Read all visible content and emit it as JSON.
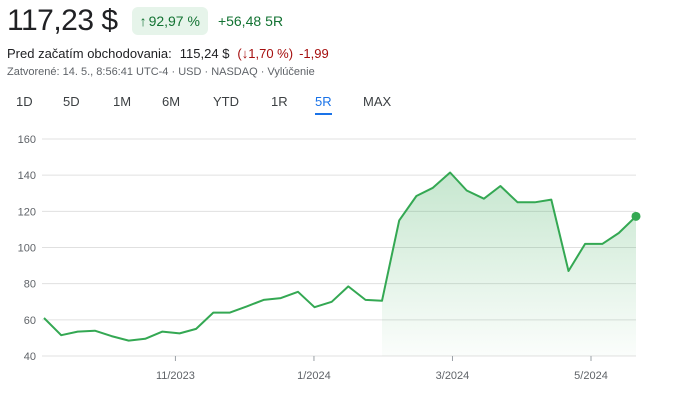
{
  "quote": {
    "price": "117,23 $",
    "pct_change": "92,97 %",
    "abs_change": "+56,48",
    "period": "5R"
  },
  "premarket": {
    "label": "Pred začatím obchodovania:",
    "price": "115,24 $",
    "pct": "(↓1,70 %)",
    "abs": "-1,99"
  },
  "meta": "Zatvorené: 14. 5., 8:56:41 UTC-4 · USD · NASDAQ · Vylúčenie",
  "tabs": [
    {
      "label": "1D",
      "active": false
    },
    {
      "label": "5D",
      "active": false
    },
    {
      "label": "1M",
      "active": false
    },
    {
      "label": "6M",
      "active": false
    },
    {
      "label": "YTD",
      "active": false
    },
    {
      "label": "1R",
      "active": false
    },
    {
      "label": "5R",
      "active": true
    },
    {
      "label": "MAX",
      "active": false
    }
  ],
  "colors": {
    "up": "#137333",
    "down": "#a50e0e",
    "line": "#34a853",
    "accent": "#1a73e8"
  },
  "chart_data": {
    "type": "area",
    "ylim": [
      40,
      160
    ],
    "yticks": [
      40,
      60,
      80,
      100,
      120,
      140,
      160
    ],
    "grid": true,
    "xtick_labels": [
      {
        "label": "11/2023",
        "t": 0.222
      },
      {
        "label": "1/2024",
        "t": 0.456
      },
      {
        "label": "3/2024",
        "t": 0.69
      },
      {
        "label": "5/2024",
        "t": 0.924
      }
    ],
    "x": [
      0,
      0.029,
      0.057,
      0.086,
      0.114,
      0.143,
      0.171,
      0.2,
      0.229,
      0.257,
      0.286,
      0.314,
      0.343,
      0.371,
      0.4,
      0.429,
      0.457,
      0.486,
      0.514,
      0.543,
      0.571,
      0.6,
      0.629,
      0.657,
      0.686,
      0.714,
      0.743,
      0.771,
      0.8,
      0.829,
      0.857,
      0.886,
      0.914,
      0.943,
      0.971,
      1.0
    ],
    "values": [
      61,
      51.5,
      53.5,
      54,
      51,
      48.5,
      49.5,
      53.5,
      52.5,
      55,
      64,
      64,
      67.5,
      71,
      72,
      75.5,
      67,
      70,
      78.5,
      71,
      70.5,
      115,
      128.5,
      133,
      141.5,
      131.5,
      127,
      134,
      125,
      125,
      126.5,
      87,
      102,
      102,
      108,
      117.23
    ]
  }
}
